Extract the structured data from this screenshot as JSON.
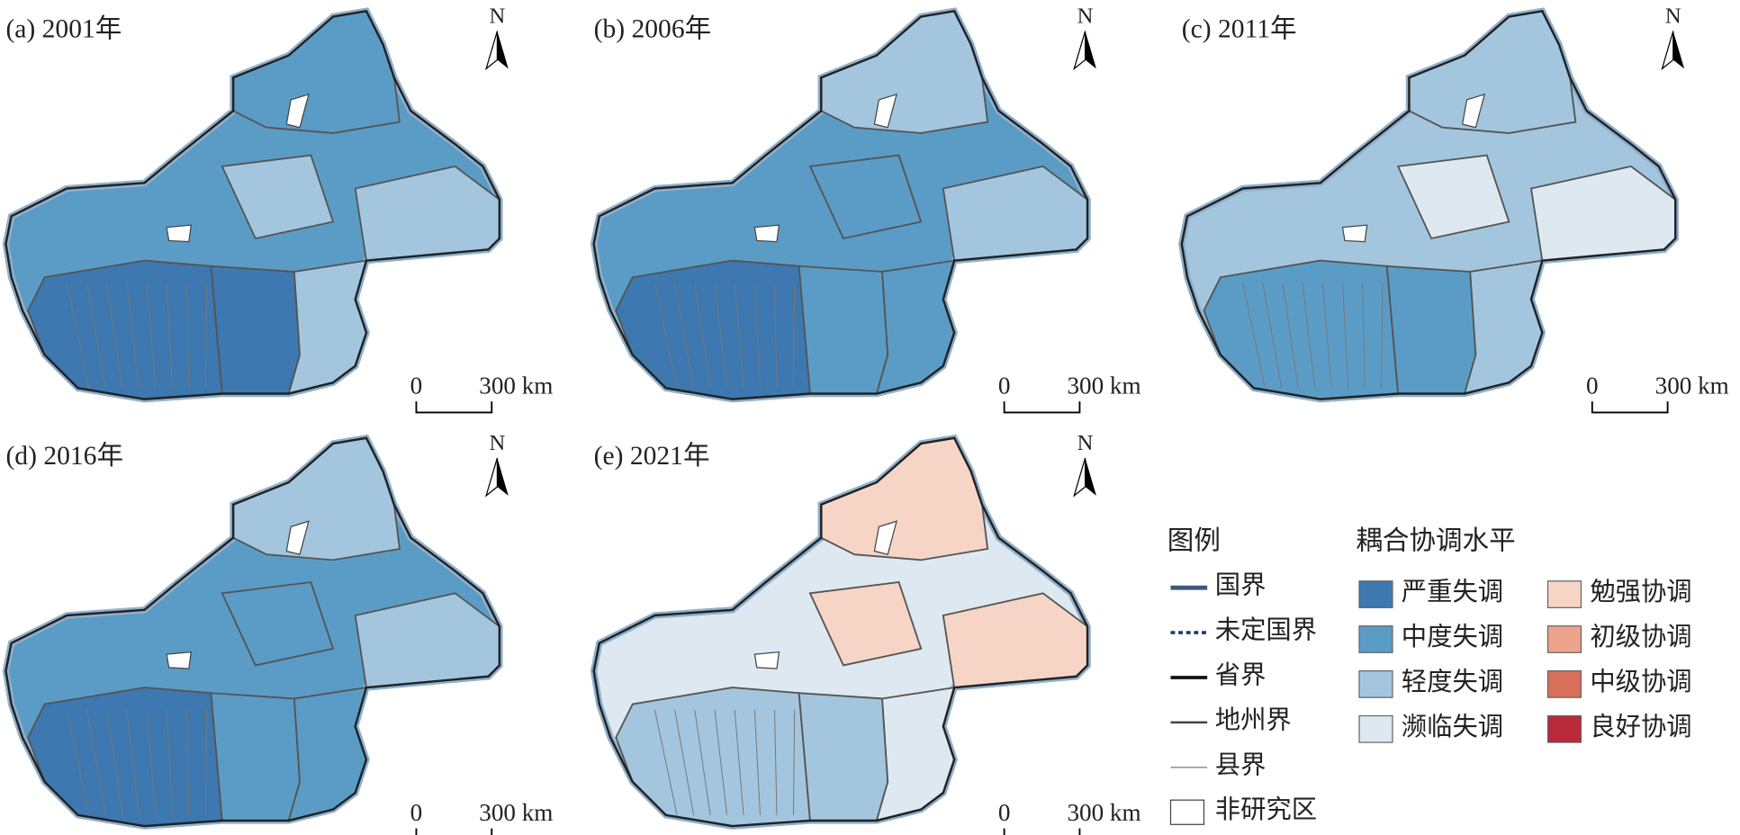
{
  "panels": [
    {
      "label": "(a) 2001年",
      "north": "N",
      "scale_start": "0",
      "scale_end": "300 km"
    },
    {
      "label": "(b) 2006年",
      "north": "N",
      "scale_start": "0",
      "scale_end": "300 km"
    },
    {
      "label": "(c) 2011年",
      "north": "N",
      "scale_start": "0",
      "scale_end": "300 km"
    },
    {
      "label": "(d) 2016年",
      "north": "N",
      "scale_start": "0",
      "scale_end": "300 km"
    },
    {
      "label": "(e) 2021年",
      "north": "N",
      "scale_start": "0",
      "scale_end": "300 km"
    }
  ],
  "legend": {
    "title": "图例",
    "boundaries": [
      "国界",
      "未定国界",
      "省界",
      "地州界",
      "县界",
      "非研究区"
    ],
    "levels_title": "耦合协调水平",
    "levels": [
      {
        "label": "严重失调",
        "color": "#3d78b0"
      },
      {
        "label": "中度失调",
        "color": "#5b9cc6"
      },
      {
        "label": "轻度失调",
        "color": "#a3c6de"
      },
      {
        "label": "濒临失调",
        "color": "#dde8f0"
      },
      {
        "label": "勉强协调",
        "color": "#f6d5c6"
      },
      {
        "label": "初级协调",
        "color": "#eea38c"
      },
      {
        "label": "中级协调",
        "color": "#d8705c"
      },
      {
        "label": "良好协调",
        "color": "#b8293a"
      }
    ]
  }
}
